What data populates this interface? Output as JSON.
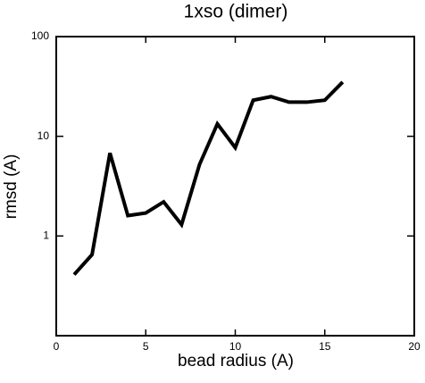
{
  "chart_data": {
    "type": "line",
    "title": "1xso (dimer)",
    "xlabel": "bead radius (A)",
    "ylabel": "rmsd (A)",
    "x": [
      1,
      2,
      3,
      4,
      5,
      6,
      7,
      8,
      9,
      10,
      11,
      12,
      13,
      14,
      15,
      16
    ],
    "series": [
      {
        "color": "#000000",
        "values": [
          0.41,
          0.65,
          6.8,
          1.6,
          1.7,
          2.2,
          1.3,
          5.2,
          13.3,
          7.7,
          23,
          25,
          22,
          22,
          23,
          35
        ]
      }
    ],
    "xlim": [
      0,
      20
    ],
    "xticks": [
      0,
      5,
      10,
      15,
      20
    ],
    "ylim": [
      0.1,
      100
    ],
    "yticks": [
      1,
      10,
      100
    ],
    "ylog": true
  }
}
